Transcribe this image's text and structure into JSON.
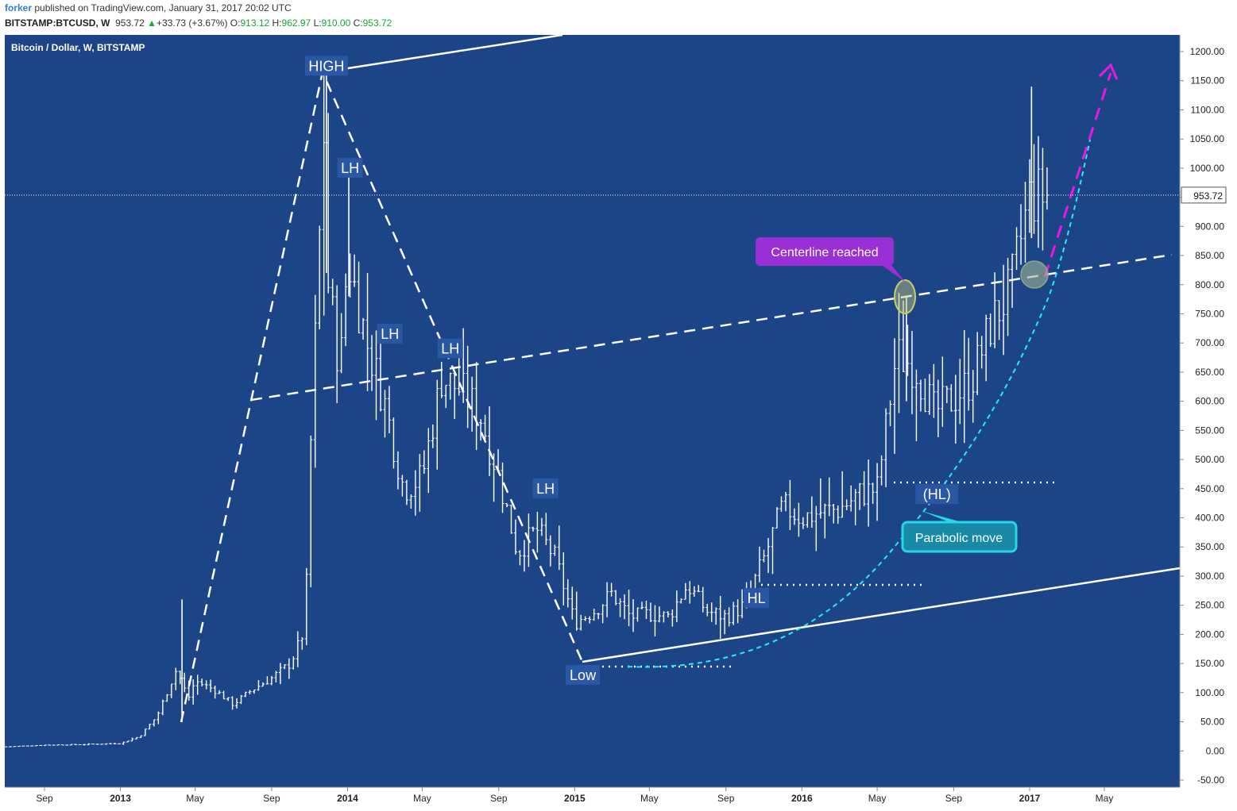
{
  "header": {
    "author": "forker",
    "published": "published on TradingView.com, January 31, 2017 20:02 UTC",
    "symbol": "BITSTAMP:BTCUSD, W",
    "last": "953.72",
    "change": "+33.73 (+3.67%)",
    "open": "913.12",
    "high": "962.97",
    "low": "910.00",
    "close": "953.72",
    "open_label": "O:",
    "high_label": "H:",
    "low_label": "L:",
    "close_label": "C:"
  },
  "chart_data": {
    "type": "candlestick",
    "title": "Bitcoin / Dollar, W, BITSTAMP",
    "ylim": [
      -50,
      1200
    ],
    "y_ticks": [
      "1200.00",
      "1150.00",
      "1100.00",
      "1050.00",
      "1000.00",
      "950.00",
      "900.00",
      "850.00",
      "800.00",
      "750.00",
      "700.00",
      "650.00",
      "600.00",
      "550.00",
      "500.00",
      "450.00",
      "400.00",
      "350.00",
      "300.00",
      "250.00",
      "200.00",
      "150.00",
      "100.00",
      "50.00",
      "0.00",
      "-50.00"
    ],
    "x_ticks": [
      {
        "label": "Sep",
        "date": "2012-09"
      },
      {
        "label": "2013",
        "date": "2013-01"
      },
      {
        "label": "May",
        "date": "2013-05"
      },
      {
        "label": "Sep",
        "date": "2013-09"
      },
      {
        "label": "2014",
        "date": "2014-01"
      },
      {
        "label": "May",
        "date": "2014-05"
      },
      {
        "label": "Sep",
        "date": "2014-09"
      },
      {
        "label": "2015",
        "date": "2015-01"
      },
      {
        "label": "May",
        "date": "2015-05"
      },
      {
        "label": "Sep",
        "date": "2015-09"
      },
      {
        "label": "2016",
        "date": "2016-01"
      },
      {
        "label": "May",
        "date": "2016-05"
      },
      {
        "label": "Sep",
        "date": "2016-09"
      },
      {
        "label": "2017",
        "date": "2017-01"
      },
      {
        "label": "May",
        "date": "2017-05"
      }
    ],
    "current_price": 953.72,
    "current_price_label": "953.72",
    "price_path": [
      [
        "2012-07",
        7
      ],
      [
        "2012-09",
        10
      ],
      [
        "2012-11",
        11
      ],
      [
        "2013-01",
        13
      ],
      [
        "2013-02",
        25
      ],
      [
        "2013-03",
        60
      ],
      [
        "2013-04",
        140
      ],
      [
        "2013-04-20",
        90
      ],
      [
        "2013-05",
        120
      ],
      [
        "2013-06",
        105
      ],
      [
        "2013-07",
        80
      ],
      [
        "2013-08",
        105
      ],
      [
        "2013-09",
        125
      ],
      [
        "2013-10",
        150
      ],
      [
        "2013-10-25",
        210
      ],
      [
        "2013-11",
        480
      ],
      [
        "2013-11-28",
        1160
      ],
      [
        "2013-12",
        800
      ],
      [
        "2013-12-20",
        650
      ],
      [
        "2014-01",
        850
      ],
      [
        "2014-02",
        700
      ],
      [
        "2014-03",
        600
      ],
      [
        "2014-04",
        450
      ],
      [
        "2014-05",
        470
      ],
      [
        "2014-06",
        640
      ],
      [
        "2014-07",
        620
      ],
      [
        "2014-08",
        580
      ],
      [
        "2014-09",
        470
      ],
      [
        "2014-10",
        340
      ],
      [
        "2014-11",
        380
      ],
      [
        "2014-12",
        330
      ],
      [
        "2015-01",
        220
      ],
      [
        "2015-02",
        240
      ],
      [
        "2015-03",
        270
      ],
      [
        "2015-04",
        230
      ],
      [
        "2015-05",
        235
      ],
      [
        "2015-06",
        230
      ],
      [
        "2015-07",
        285
      ],
      [
        "2015-08",
        240
      ],
      [
        "2015-09",
        230
      ],
      [
        "2015-10",
        250
      ],
      [
        "2015-11",
        330
      ],
      [
        "2015-12",
        420
      ],
      [
        "2016-01",
        400
      ],
      [
        "2016-02",
        410
      ],
      [
        "2016-03",
        415
      ],
      [
        "2016-04",
        440
      ],
      [
        "2016-05",
        450
      ],
      [
        "2016-06",
        680
      ],
      [
        "2016-07",
        660
      ],
      [
        "2016-08",
        580
      ],
      [
        "2016-09",
        605
      ],
      [
        "2016-10",
        640
      ],
      [
        "2016-11",
        735
      ],
      [
        "2016-12",
        790
      ],
      [
        "2017-01",
        950
      ],
      [
        "2017-01-31",
        953.72
      ]
    ],
    "annotations": [
      {
        "text": "HIGH",
        "date": "2013-11-28",
        "price": 1175
      },
      {
        "text": "LH",
        "date": "2014-01-05",
        "price": 1000
      },
      {
        "text": "LH",
        "date": "2014-03-10",
        "price": 715
      },
      {
        "text": "LH",
        "date": "2014-06-15",
        "price": 690
      },
      {
        "text": "LH",
        "date": "2014-11-15",
        "price": 450
      },
      {
        "text": "Low",
        "date": "2015-01-14",
        "price": 130
      },
      {
        "text": "HL",
        "date": "2015-10-20",
        "price": 262
      },
      {
        "text": "(HL)",
        "date": "2016-08-05",
        "price": 440
      }
    ],
    "callouts": [
      {
        "text": "Centerline reached",
        "color": "#9b2fd6"
      },
      {
        "text": "Parabolic move",
        "color": "#25d7e8"
      }
    ],
    "colors": {
      "background": "#1c4587",
      "bars": "#ffffff",
      "parabolic": "#2ee6ff",
      "projection": "#e81ae8",
      "centerline_marker": "#c7cf6a",
      "price_label_bg": "#ffffff",
      "axis_bg": "#ffffff"
    }
  }
}
